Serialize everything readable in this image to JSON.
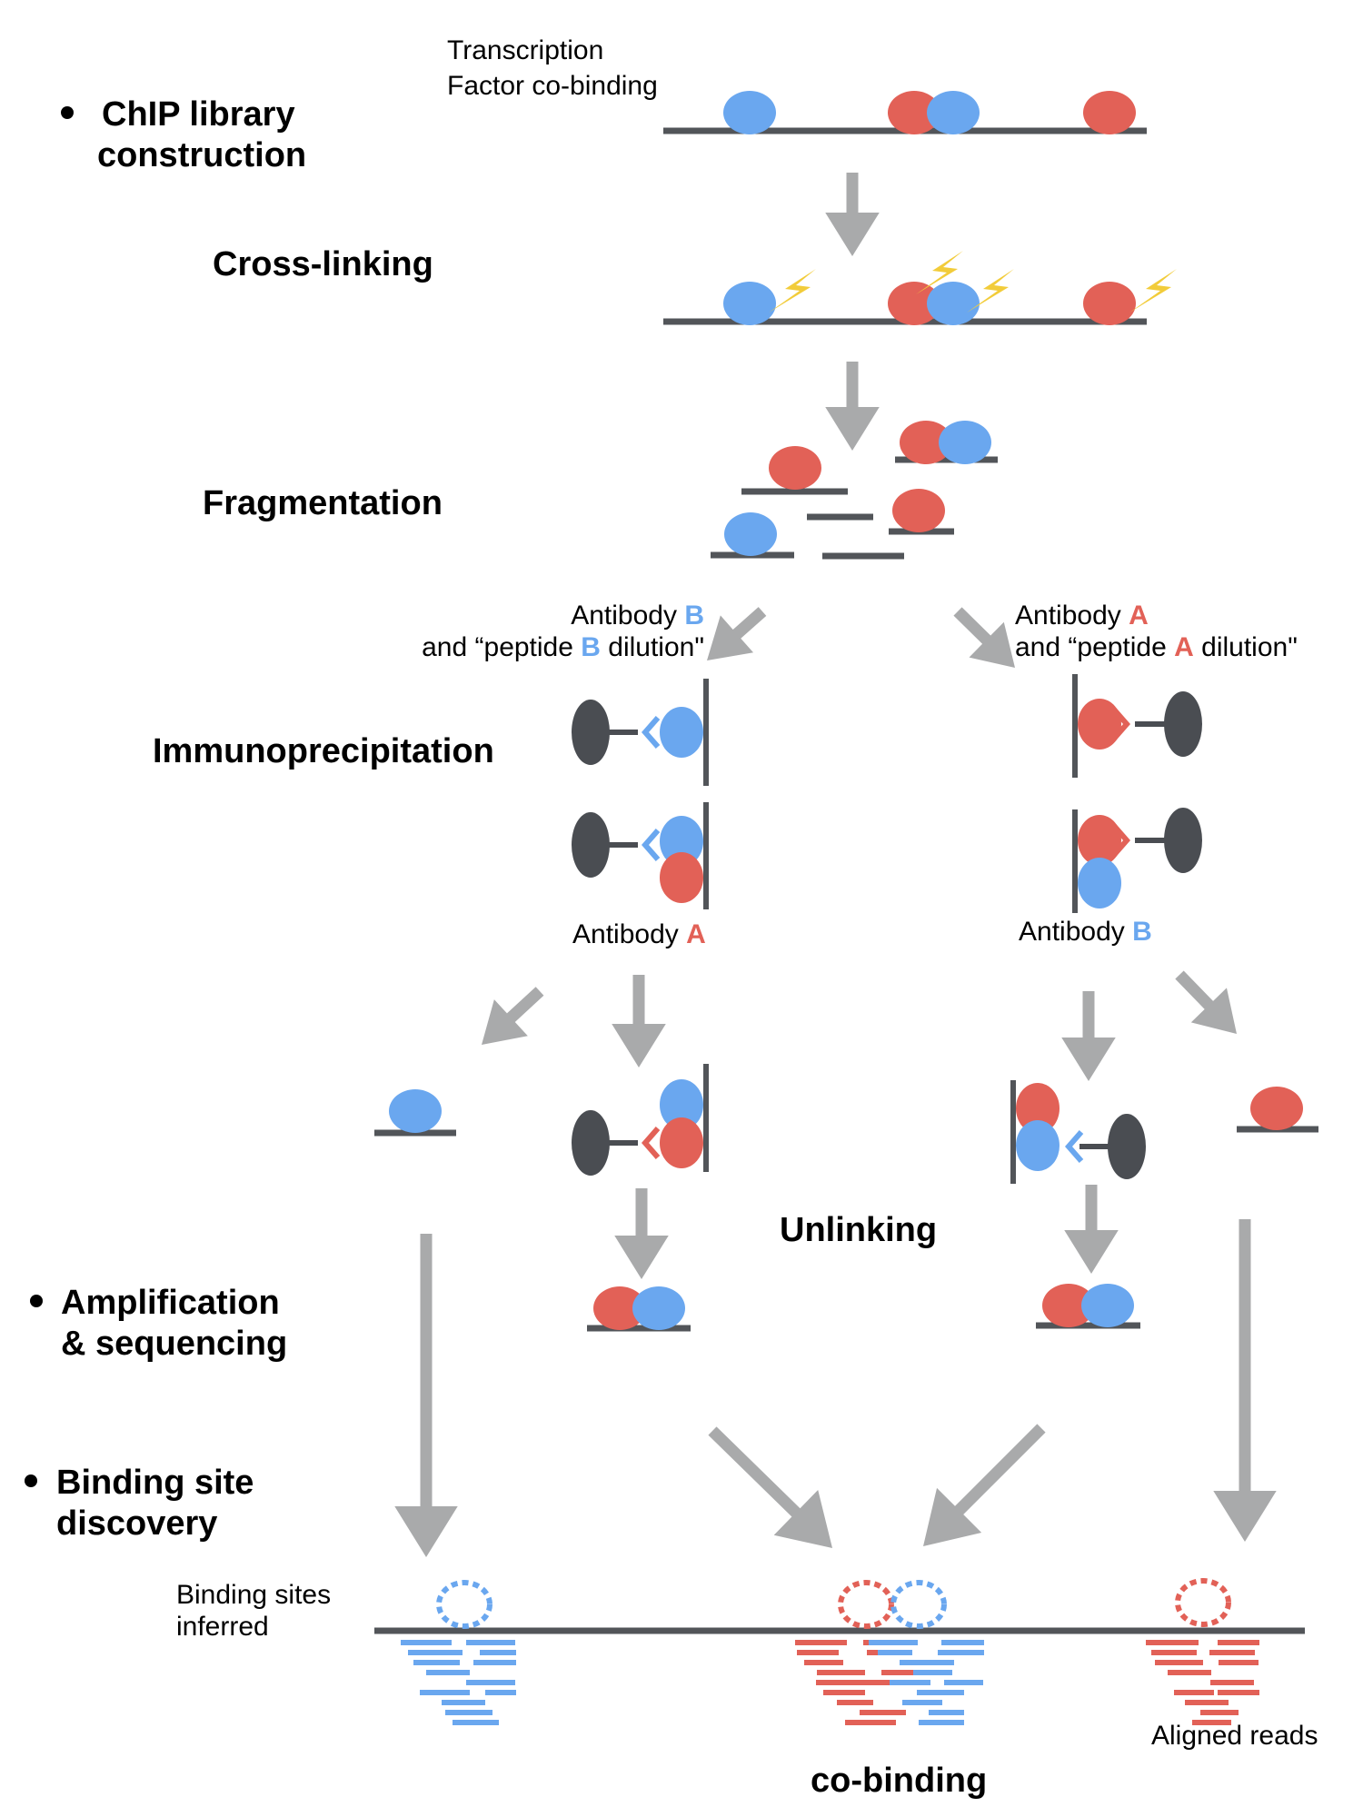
{
  "colors": {
    "factor_a": "#e26157",
    "factor_b": "#6aa7ef",
    "dna": "#525559",
    "arrow": "#a9aaab",
    "lightning": "#f2cc3a",
    "bead": "#4a4d52"
  },
  "bullets": {
    "library": {
      "line1": "ChIP library",
      "line2": "construction"
    },
    "amplification": {
      "line1": "Amplification",
      "line2": "& sequencing"
    },
    "discovery": {
      "line1": "Binding site",
      "line2": "discovery"
    }
  },
  "steps": {
    "crosslinking": "Cross-linking",
    "fragmentation": "Fragmentation",
    "immunoprecipitation": "Immunoprecipitation",
    "unlinking": "Unlinking"
  },
  "labels": {
    "tf_line1": "Transcription",
    "tf_line2": "Factor co-binding",
    "left_branch": {
      "line1_pre": "Antibody ",
      "line1_letter": "B",
      "line2_pre": "and “peptide ",
      "line2_letter": "B",
      "line2_post": " dilution\""
    },
    "right_branch": {
      "line1_pre": "Antibody ",
      "line1_letter": "A",
      "line2_pre": "and “peptide ",
      "line2_letter": "A",
      "line2_post": " dilution\""
    },
    "second_ab_left": {
      "pre": "Antibody ",
      "letter": "A"
    },
    "second_ab_right": {
      "pre": "Antibody ",
      "letter": "B"
    },
    "binding_sites_line1": "Binding sites",
    "binding_sites_line2": "inferred",
    "aligned_reads": "Aligned reads",
    "cobinding": "co-binding"
  }
}
